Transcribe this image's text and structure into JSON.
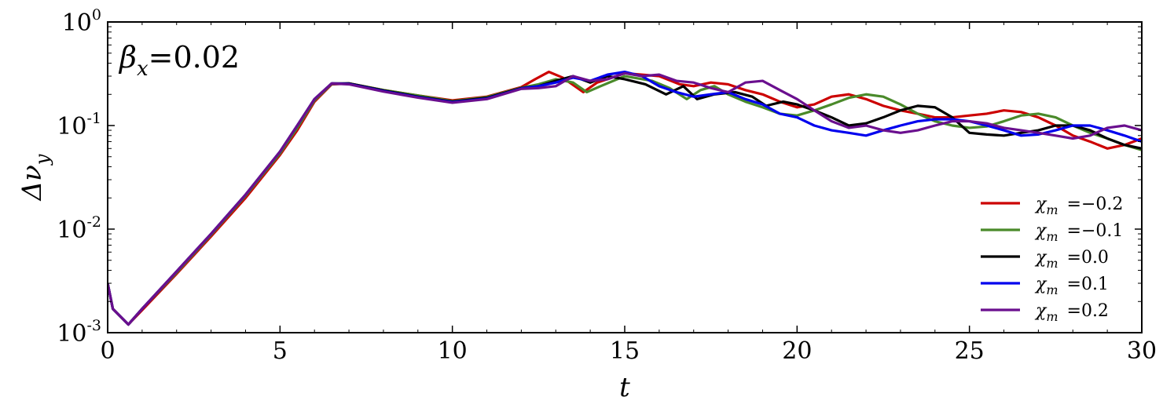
{
  "chart_data": {
    "type": "line",
    "title": "",
    "xlabel": "t",
    "ylabel": "Δν",
    "ylabel_sub": "y",
    "annotation": {
      "symbol": "β",
      "sub": "x",
      "text": "=0.02"
    },
    "xlim": [
      0,
      30
    ],
    "ylim": [
      0.001,
      1
    ],
    "yscale": "log",
    "grid": false,
    "legend_position": "bottom-right",
    "xticks": [
      {
        "value": 0,
        "label": "0"
      },
      {
        "value": 5,
        "label": "5"
      },
      {
        "value": 10,
        "label": "10"
      },
      {
        "value": 15,
        "label": "15"
      },
      {
        "value": 20,
        "label": "20"
      },
      {
        "value": 25,
        "label": "25"
      },
      {
        "value": 30,
        "label": "30"
      }
    ],
    "yticks": [
      {
        "value": 0.001,
        "base": "10",
        "exp": "-3"
      },
      {
        "value": 0.01,
        "base": "10",
        "exp": "-2"
      },
      {
        "value": 0.1,
        "base": "10",
        "exp": "-1"
      },
      {
        "value": 1,
        "base": "10",
        "exp": "0"
      }
    ],
    "series": [
      {
        "name": "χm =−0.2",
        "symbol": "χ",
        "sub": "m",
        "value_text": "=−0.2",
        "color": "#cc0000",
        "x": [
          0,
          0.15,
          0.6,
          1,
          2,
          3,
          4,
          5,
          5.5,
          6,
          6.5,
          7,
          8,
          9,
          10,
          11,
          12,
          12.4,
          12.8,
          13.2,
          13.8,
          14.2,
          15,
          16,
          16.6,
          17,
          17.5,
          18,
          18.5,
          19,
          19.5,
          20,
          20.5,
          21,
          21.5,
          22,
          22.5,
          23,
          23.5,
          24,
          24.5,
          25,
          25.5,
          26,
          26.5,
          27,
          27.5,
          28,
          28.5,
          29,
          29.5,
          30
        ],
        "y": [
          0.003,
          0.0017,
          0.0012,
          0.00165,
          0.0037,
          0.0085,
          0.02,
          0.052,
          0.09,
          0.17,
          0.25,
          0.255,
          0.22,
          0.195,
          0.175,
          0.19,
          0.235,
          0.28,
          0.33,
          0.29,
          0.21,
          0.26,
          0.32,
          0.3,
          0.25,
          0.24,
          0.26,
          0.25,
          0.22,
          0.2,
          0.17,
          0.15,
          0.16,
          0.19,
          0.2,
          0.18,
          0.155,
          0.14,
          0.13,
          0.12,
          0.12,
          0.125,
          0.13,
          0.14,
          0.135,
          0.12,
          0.1,
          0.08,
          0.07,
          0.06,
          0.065,
          0.075
        ]
      },
      {
        "name": "χm =−0.1",
        "symbol": "χ",
        "sub": "m",
        "value_text": "=−0.1",
        "color": "#4a8a2a",
        "x": [
          0,
          0.15,
          0.6,
          1,
          2,
          3,
          4,
          5,
          5.5,
          6,
          6.5,
          7,
          8,
          9,
          10,
          11,
          12,
          12.5,
          13,
          13.5,
          13.9,
          14.3,
          15,
          15.8,
          16.3,
          16.8,
          17.2,
          17.6,
          18,
          18.5,
          19,
          19.5,
          20,
          20.5,
          21,
          21.5,
          22,
          22.5,
          23,
          23.5,
          24,
          24.5,
          25,
          25.5,
          26,
          26.5,
          27,
          27.5,
          28,
          28.5,
          29,
          29.5,
          30
        ],
        "y": [
          0.003,
          0.0017,
          0.0012,
          0.0017,
          0.0038,
          0.0088,
          0.021,
          0.054,
          0.095,
          0.175,
          0.252,
          0.255,
          0.22,
          0.195,
          0.172,
          0.188,
          0.232,
          0.25,
          0.28,
          0.26,
          0.21,
          0.24,
          0.3,
          0.27,
          0.23,
          0.18,
          0.22,
          0.24,
          0.2,
          0.17,
          0.15,
          0.13,
          0.125,
          0.14,
          0.16,
          0.185,
          0.2,
          0.19,
          0.16,
          0.13,
          0.11,
          0.1,
          0.095,
          0.098,
          0.11,
          0.125,
          0.13,
          0.12,
          0.1,
          0.085,
          0.075,
          0.065,
          0.058
        ]
      },
      {
        "name": "χm =0.0",
        "symbol": "χ",
        "sub": "m",
        "value_text": "=0.0",
        "color": "#000000",
        "x": [
          0,
          0.15,
          0.6,
          1,
          2,
          3,
          4,
          5,
          5.5,
          6,
          6.5,
          7,
          8,
          9,
          10,
          11,
          12,
          12.5,
          13,
          13.5,
          14,
          14.5,
          15,
          15.6,
          16.2,
          16.7,
          17.1,
          17.6,
          18.2,
          18.7,
          19.1,
          19.6,
          20,
          20.5,
          21,
          21.5,
          22,
          22.5,
          23,
          23.5,
          24,
          24.5,
          25,
          25.5,
          26,
          26.5,
          27,
          27.5,
          28,
          28.5,
          29,
          29.5,
          30
        ],
        "y": [
          0.003,
          0.0017,
          0.0012,
          0.0017,
          0.0039,
          0.009,
          0.0215,
          0.056,
          0.1,
          0.18,
          0.255,
          0.255,
          0.218,
          0.19,
          0.17,
          0.185,
          0.23,
          0.24,
          0.27,
          0.3,
          0.26,
          0.3,
          0.28,
          0.25,
          0.2,
          0.24,
          0.18,
          0.2,
          0.21,
          0.19,
          0.155,
          0.17,
          0.16,
          0.14,
          0.12,
          0.1,
          0.105,
          0.12,
          0.14,
          0.155,
          0.15,
          0.12,
          0.085,
          0.082,
          0.08,
          0.085,
          0.09,
          0.1,
          0.1,
          0.09,
          0.075,
          0.065,
          0.06
        ]
      },
      {
        "name": "χm =0.1",
        "symbol": "χ",
        "sub": "m",
        "value_text": "=0.1",
        "color": "#0000ee",
        "x": [
          0,
          0.15,
          0.6,
          1,
          2,
          3,
          4,
          5,
          5.5,
          6,
          6.5,
          7,
          8,
          9,
          10,
          11,
          12,
          12.5,
          13,
          13.5,
          14,
          14.5,
          15,
          15.5,
          16,
          16.5,
          17,
          17.5,
          18,
          18.5,
          19,
          19.5,
          20,
          20.5,
          21,
          21.5,
          22,
          22.5,
          23,
          23.5,
          24,
          24.5,
          25,
          25.5,
          26,
          26.5,
          27,
          27.5,
          28,
          28.5,
          29,
          29.5,
          30
        ],
        "y": [
          0.003,
          0.0017,
          0.0012,
          0.0017,
          0.0039,
          0.009,
          0.0215,
          0.056,
          0.1,
          0.18,
          0.255,
          0.252,
          0.215,
          0.188,
          0.168,
          0.182,
          0.228,
          0.24,
          0.26,
          0.29,
          0.27,
          0.31,
          0.33,
          0.3,
          0.24,
          0.21,
          0.19,
          0.2,
          0.21,
          0.18,
          0.16,
          0.13,
          0.12,
          0.1,
          0.09,
          0.085,
          0.08,
          0.09,
          0.1,
          0.11,
          0.115,
          0.115,
          0.11,
          0.1,
          0.09,
          0.08,
          0.082,
          0.09,
          0.1,
          0.1,
          0.09,
          0.08,
          0.07
        ]
      },
      {
        "name": "χm =0.2",
        "symbol": "χ",
        "sub": "m",
        "value_text": "=0.2",
        "color": "#6a0f8e",
        "x": [
          0,
          0.15,
          0.6,
          1,
          2,
          3,
          4,
          5,
          5.5,
          6,
          6.5,
          7,
          8,
          9,
          10,
          11,
          12,
          12.5,
          13,
          13.5,
          14,
          14.5,
          15,
          15.5,
          16,
          16.5,
          17,
          17.5,
          18,
          18.5,
          19,
          19.5,
          20,
          20.5,
          21,
          21.5,
          22,
          22.5,
          23,
          23.5,
          24,
          24.5,
          25,
          25.5,
          26,
          26.5,
          27,
          27.5,
          28,
          28.5,
          29,
          29.5,
          30
        ],
        "y": [
          0.003,
          0.0017,
          0.0012,
          0.0017,
          0.0039,
          0.009,
          0.0215,
          0.056,
          0.1,
          0.18,
          0.255,
          0.25,
          0.213,
          0.186,
          0.166,
          0.18,
          0.226,
          0.23,
          0.24,
          0.3,
          0.27,
          0.28,
          0.32,
          0.3,
          0.31,
          0.27,
          0.26,
          0.23,
          0.21,
          0.26,
          0.27,
          0.22,
          0.18,
          0.14,
          0.11,
          0.095,
          0.1,
          0.09,
          0.085,
          0.09,
          0.1,
          0.11,
          0.11,
          0.105,
          0.095,
          0.09,
          0.085,
          0.08,
          0.075,
          0.08,
          0.095,
          0.1,
          0.09
        ]
      }
    ]
  }
}
